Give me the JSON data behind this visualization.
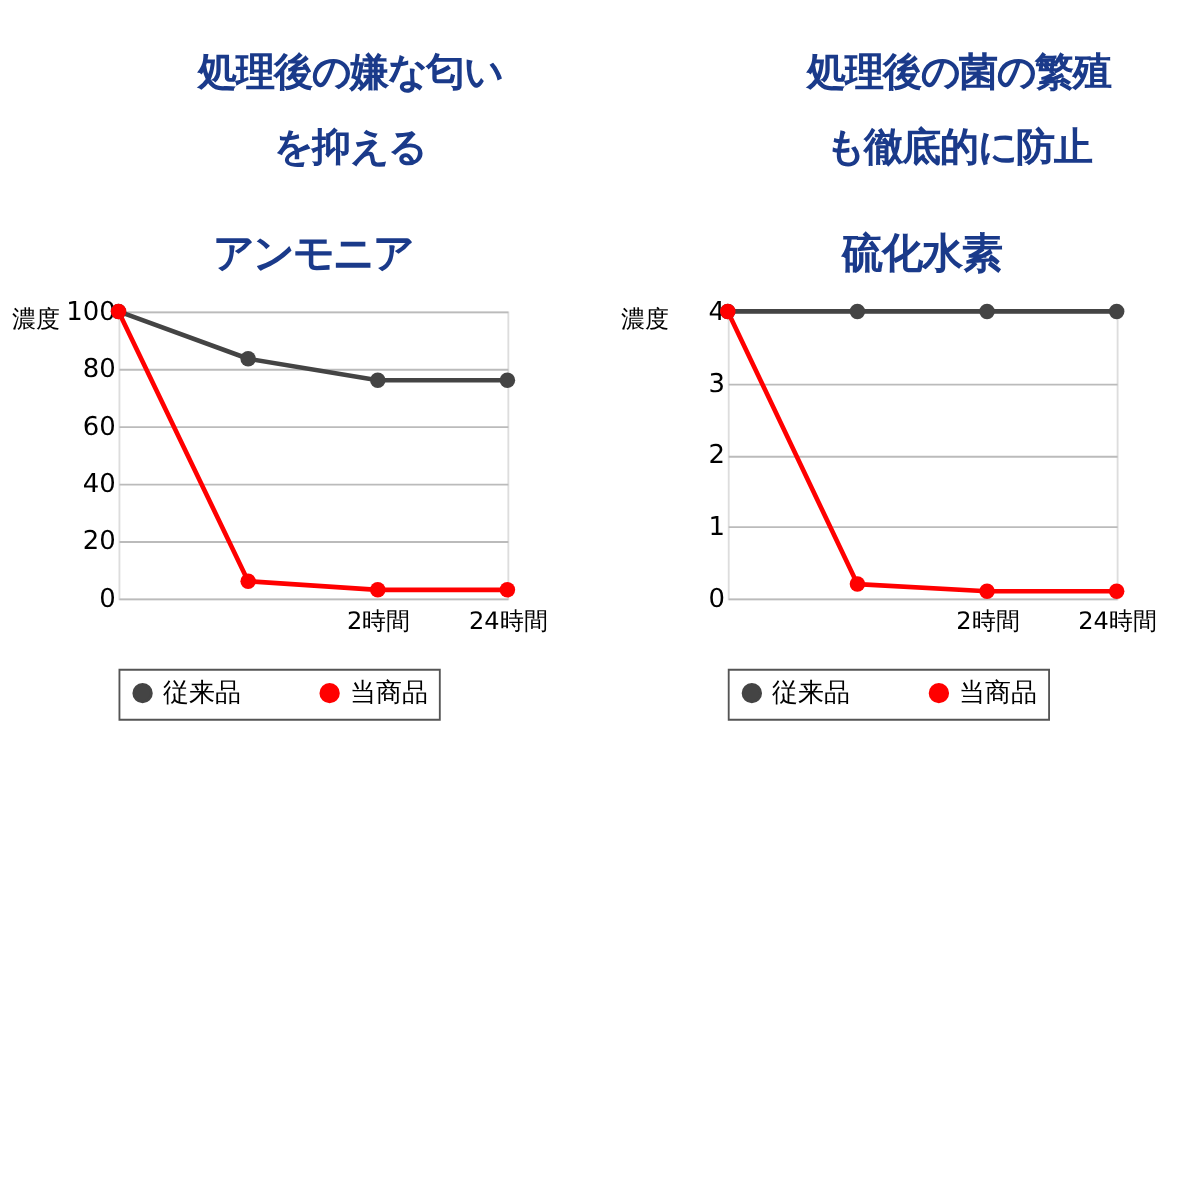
{
  "chart_data": [
    {
      "type": "line",
      "title": "アンモニア",
      "annotations": [
        "処理後の嫌な匂い",
        "を抑える"
      ],
      "ylabel": "濃度",
      "categories": [
        null,
        null,
        "2時間",
        "24時間"
      ],
      "ylim": [
        0,
        100
      ],
      "yticks": [
        0,
        20,
        40,
        60,
        80,
        100
      ],
      "grid": "y",
      "legend": "bottom",
      "marker": "circle",
      "series": [
        {
          "name": "従来品",
          "color": "#444444",
          "values": [
            100,
            83.5,
            76,
            76
          ]
        },
        {
          "name": "当商品",
          "color": "#ff0000",
          "values": [
            100,
            6,
            3,
            3
          ]
        }
      ]
    },
    {
      "type": "line",
      "title": "硫化水素",
      "annotations": [
        "処理後の菌の繁殖",
        "も徹底的に防止"
      ],
      "ylabel": "濃度",
      "categories": [
        null,
        null,
        "2時間",
        "24時間"
      ],
      "ylim": [
        0,
        4
      ],
      "yticks": [
        0,
        1,
        2,
        3,
        4
      ],
      "grid": "y",
      "legend": "bottom",
      "marker": "circle",
      "series": [
        {
          "name": "従来品",
          "color": "#444444",
          "values": [
            4,
            4,
            4,
            4
          ]
        },
        {
          "name": "当商品",
          "color": "#ff0000",
          "values": [
            4,
            0.2,
            0.1,
            0.1
          ]
        }
      ]
    }
  ]
}
